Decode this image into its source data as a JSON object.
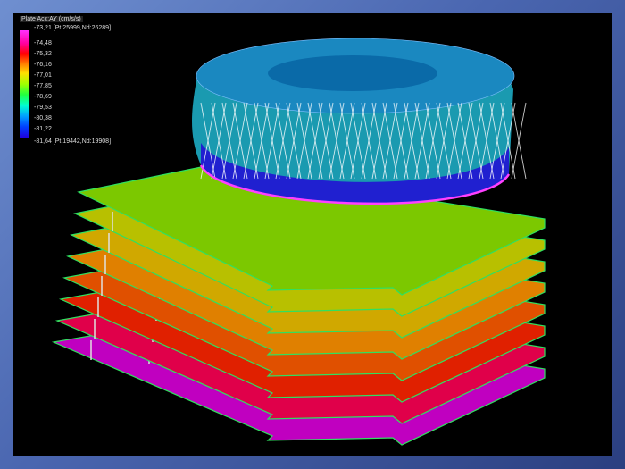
{
  "legend": {
    "title": "Plate Acc:AY (cm/s/s)",
    "values": [
      "-73,21 [Pt:25999,Nd:26289]",
      "-74,48",
      "-75,32",
      "-76,16",
      "-77,01",
      "-77,85",
      "-78,69",
      "-79,53",
      "-80,38",
      "-81,22",
      "-81,64 [Pt:19442,Nd:19908]"
    ],
    "colors": [
      "#ff30ff",
      "#ff00a0",
      "#ff0000",
      "#ff7000",
      "#ffe000",
      "#a0ff00",
      "#20ff40",
      "#00ffd0",
      "#00a0ff",
      "#0040ff",
      "#2000e0"
    ]
  },
  "floor_colors": [
    "#c000c0",
    "#e0004a",
    "#e02000",
    "#e05000",
    "#e08000",
    "#d0a800",
    "#b8c000",
    "#7cc800"
  ]
}
